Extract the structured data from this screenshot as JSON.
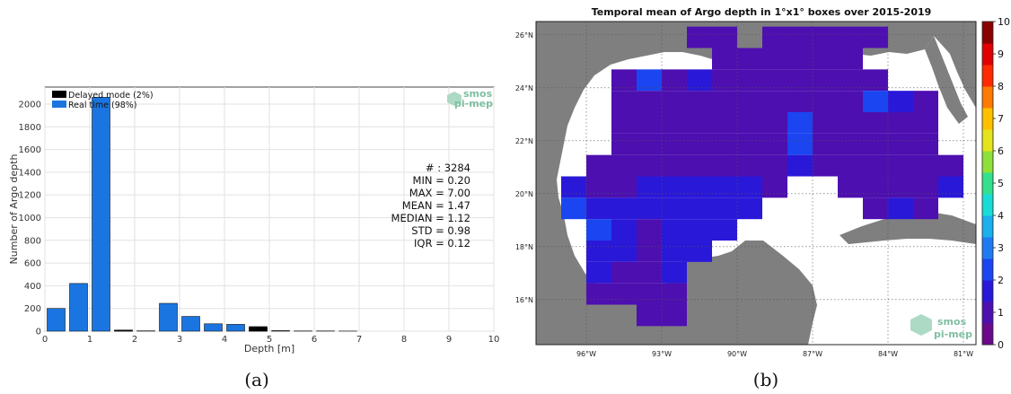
{
  "colors": {
    "delayed": "#000000",
    "realtime": "#1b75e0",
    "land": "#7f7f7f",
    "ocean": "#ffffff",
    "logo": "#7fbfa2",
    "colormap": [
      "#6a0a8a",
      "#4d0fb0",
      "#2a18d8",
      "#1a45f0",
      "#1f7bf2",
      "#1bb0ee",
      "#18dcd8",
      "#34e08e",
      "#8ee03a",
      "#e4e41c",
      "#ffc000",
      "#ff7a00",
      "#ff2a00",
      "#e00000",
      "#8b0000"
    ]
  },
  "logo": {
    "line1": "smos",
    "line2": "pi-mep"
  },
  "panel_a": {
    "caption": "(a)",
    "xlabel": "Depth [m]",
    "ylabel": "Number of Argo depth",
    "legend": [
      "Delayed mode (2%)",
      "Real time (98%)"
    ],
    "stats": [
      "# : 3284",
      "MIN = 0.20",
      "MAX =  7.00",
      "MEAN = 1.47",
      "MEDIAN = 1.12",
      "STD = 0.98",
      "IQR = 0.12"
    ],
    "xticks": [
      "0",
      "1",
      "2",
      "3",
      "4",
      "5",
      "6",
      "7",
      "8",
      "9",
      "10"
    ],
    "yticks": [
      "0",
      "200",
      "400",
      "600",
      "800",
      "1000",
      "1200",
      "1400",
      "1600",
      "1800",
      "2000"
    ]
  },
  "panel_b": {
    "caption": "(b)",
    "title": "Temporal mean of Argo depth in 1°x1° boxes over 2015-2019",
    "lon_labels": [
      "96°W",
      "93°W",
      "90°W",
      "87°W",
      "84°W",
      "81°W"
    ],
    "lat_labels": [
      "16°N",
      "18°N",
      "20°N",
      "22°N",
      "24°N",
      "26°N"
    ],
    "colorbar_ticks": [
      "0",
      "1",
      "2",
      "3",
      "4",
      "5",
      "6",
      "7",
      "8",
      "9",
      "10"
    ]
  },
  "chart_data": [
    {
      "type": "bar",
      "xlabel": "Depth [m]",
      "ylabel": "Number of Argo depth",
      "xlim": [
        0,
        10
      ],
      "ylim": [
        0,
        2150
      ],
      "grid": true,
      "legend_position": "top-left",
      "bar_width": 0.4,
      "x": [
        0.25,
        0.75,
        1.25,
        1.75,
        2.25,
        2.75,
        3.25,
        3.75,
        4.25,
        4.75,
        5.25,
        5.75,
        6.25,
        6.75
      ],
      "series": [
        {
          "name": "Real time (98%)",
          "values": [
            200,
            420,
            2060,
            10,
            3,
            245,
            130,
            65,
            60,
            30,
            5,
            2,
            2,
            1
          ]
        },
        {
          "name": "Delayed mode (2%)",
          "values": [
            0,
            0,
            0,
            8,
            0,
            0,
            0,
            0,
            0,
            40,
            0,
            0,
            0,
            0
          ]
        }
      ]
    },
    {
      "type": "heatmap",
      "title": "Temporal mean of Argo depth in 1°x1° boxes over 2015-2019",
      "xlim": [
        -98,
        -80.5
      ],
      "ylim": [
        14.3,
        26.5
      ],
      "colorbar_range": [
        0,
        10
      ],
      "cells": [
        [
          -92,
          25,
          0.9
        ],
        [
          -91,
          25,
          0.9
        ],
        [
          -89,
          25,
          0.9
        ],
        [
          -88,
          25,
          0.9
        ],
        [
          -87,
          25,
          0.9
        ],
        [
          -86,
          25,
          0.9
        ],
        [
          -85,
          25,
          0.9
        ],
        [
          -91,
          24,
          0.9
        ],
        [
          -90,
          24,
          0.9
        ],
        [
          -89,
          24,
          1.2
        ],
        [
          -88,
          24,
          0.9
        ],
        [
          -87,
          24,
          0.7
        ],
        [
          -86,
          24,
          0.7
        ],
        [
          -95,
          23,
          1.1
        ],
        [
          -94,
          23,
          2.3
        ],
        [
          -93,
          23,
          1.1
        ],
        [
          -92,
          23,
          1.6
        ],
        [
          -91,
          23,
          1.1
        ],
        [
          -90,
          23,
          1.1
        ],
        [
          -89,
          23,
          1.1
        ],
        [
          -88,
          23,
          1.1
        ],
        [
          -87,
          23,
          1.1
        ],
        [
          -86,
          23,
          1.1
        ],
        [
          -85,
          23,
          1.1
        ],
        [
          -95,
          22,
          1.1
        ],
        [
          -94,
          22,
          1.1
        ],
        [
          -93,
          22,
          1.1
        ],
        [
          -92,
          22,
          1.1
        ],
        [
          -91,
          22,
          1.1
        ],
        [
          -90,
          22,
          1.1
        ],
        [
          -89,
          22,
          1.1
        ],
        [
          -88,
          22,
          1.1
        ],
        [
          -87,
          22,
          1.1
        ],
        [
          -86,
          22,
          1.2
        ],
        [
          -85,
          22,
          2.4
        ],
        [
          -84,
          22,
          1.6
        ],
        [
          -83,
          22,
          1.1
        ],
        [
          -95,
          21,
          1.1
        ],
        [
          -94,
          21,
          1.1
        ],
        [
          -93,
          21,
          1.1
        ],
        [
          -92,
          21,
          1.1
        ],
        [
          -91,
          21,
          1.1
        ],
        [
          -90,
          21,
          1.1
        ],
        [
          -89,
          21,
          1.2
        ],
        [
          -88,
          21,
          2.0
        ],
        [
          -87,
          21,
          1.3
        ],
        [
          -86,
          21,
          1.3
        ],
        [
          -85,
          21,
          1.1
        ],
        [
          -84,
          21,
          1.1
        ],
        [
          -83,
          21,
          1.1
        ],
        [
          -95,
          20,
          1.1
        ],
        [
          -94,
          20,
          1.1
        ],
        [
          -93,
          20,
          1.1
        ],
        [
          -92,
          20,
          1.1
        ],
        [
          -91,
          20,
          1.1
        ],
        [
          -90,
          20,
          1.1
        ],
        [
          -89,
          20,
          1.1
        ],
        [
          -88,
          20,
          2.0
        ],
        [
          -87,
          20,
          1.3
        ],
        [
          -86,
          20,
          1.1
        ],
        [
          -85,
          20,
          1.1
        ],
        [
          -84,
          20,
          1.1
        ],
        [
          -83,
          20,
          1.1
        ],
        [
          -96,
          19,
          1.1
        ],
        [
          -95,
          19,
          1.1
        ],
        [
          -94,
          19,
          1.1
        ],
        [
          -93,
          19,
          1.1
        ],
        [
          -92,
          19,
          1.1
        ],
        [
          -91,
          19,
          1.1
        ],
        [
          -90,
          19,
          1.1
        ],
        [
          -89,
          19,
          1.1
        ],
        [
          -88,
          19,
          1.4
        ],
        [
          -87,
          19,
          1.2
        ],
        [
          -86,
          19,
          1.2
        ],
        [
          -85,
          19,
          1.1
        ],
        [
          -84,
          19,
          1.1
        ],
        [
          -83,
          19,
          1.1
        ],
        [
          -82,
          19,
          1.1
        ],
        [
          -97,
          18,
          1.5
        ],
        [
          -96,
          18,
          1.0
        ],
        [
          -95,
          18,
          1.0
        ],
        [
          -94,
          18,
          1.4
        ],
        [
          -93,
          18,
          1.4
        ],
        [
          -92,
          18,
          1.6
        ],
        [
          -91,
          18,
          1.8
        ],
        [
          -90,
          18,
          1.8
        ],
        [
          -89,
          18,
          1.3
        ],
        [
          -86,
          18,
          1.1
        ],
        [
          -85,
          18,
          1.1
        ],
        [
          -84,
          18,
          1.1
        ],
        [
          -83,
          18,
          1.1
        ],
        [
          -82,
          18,
          1.4
        ],
        [
          -97,
          17,
          2.3
        ],
        [
          -96,
          17,
          1.6
        ],
        [
          -95,
          17,
          1.5
        ],
        [
          -94,
          17,
          1.5
        ],
        [
          -93,
          17,
          1.5
        ],
        [
          -92,
          17,
          1.5
        ],
        [
          -91,
          17,
          1.5
        ],
        [
          -90,
          17,
          1.4
        ],
        [
          -85,
          17,
          1.1
        ],
        [
          -84,
          17,
          1.5
        ],
        [
          -83,
          17,
          1.1
        ],
        [
          -96,
          16,
          2.1
        ],
        [
          -95,
          16,
          1.5
        ],
        [
          -94,
          16,
          1.0
        ],
        [
          -93,
          16,
          1.5
        ],
        [
          -92,
          16,
          1.5
        ],
        [
          -91,
          16,
          1.5
        ],
        [
          -96,
          15,
          1.6
        ],
        [
          -95,
          15,
          1.4
        ],
        [
          -94,
          15,
          1.0
        ],
        [
          -93,
          15,
          1.5
        ],
        [
          -92,
          15,
          1.5
        ],
        [
          -96,
          14,
          1.4
        ],
        [
          -95,
          14,
          1.1
        ],
        [
          -94,
          14,
          1.0
        ],
        [
          -93,
          14,
          1.6
        ],
        [
          -96,
          13,
          1.0
        ],
        [
          -95,
          13,
          0.9
        ],
        [
          -94,
          13,
          0.9
        ],
        [
          -93,
          13,
          0.9
        ],
        [
          -94,
          12,
          0.9
        ],
        [
          -93,
          12,
          0.9
        ]
      ]
    }
  ]
}
